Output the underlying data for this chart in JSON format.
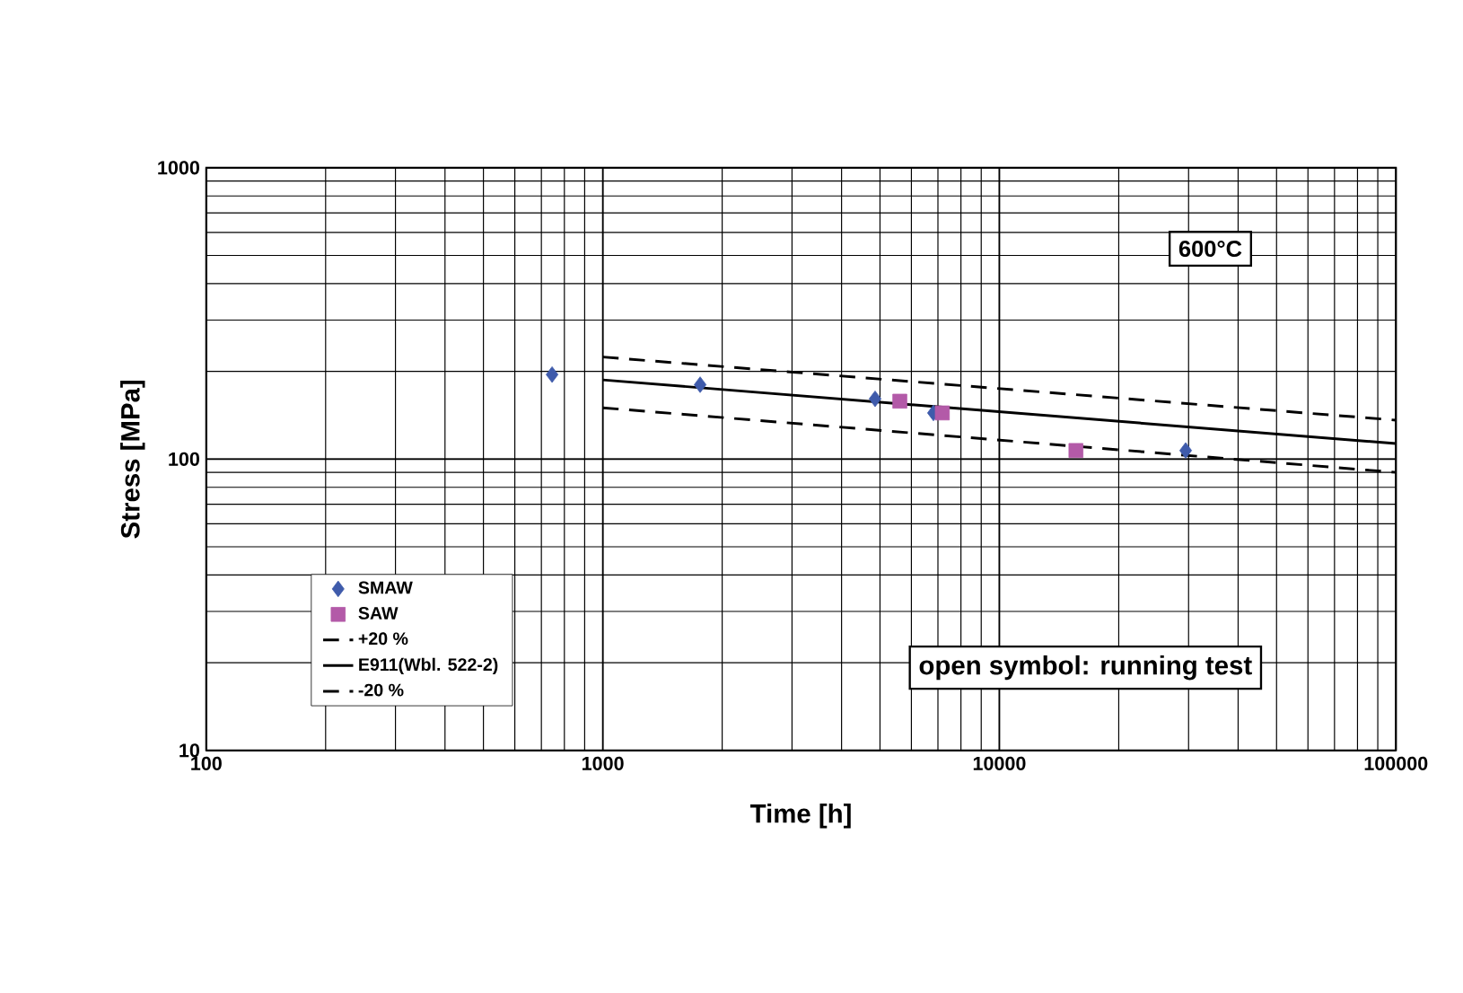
{
  "chart_data": {
    "type": "scatter",
    "xlabel": "Time [h]",
    "ylabel": "Stress [MPa]",
    "log": "xy",
    "grid": true,
    "legend": "bottom left",
    "xlim": [
      100,
      100000
    ],
    "xticks": [
      100,
      1000,
      10000,
      100000
    ],
    "ylim": [
      10,
      1000
    ],
    "yticks": [
      10,
      100,
      1000
    ],
    "annotations": [
      "600°C",
      "open symbol: running test"
    ],
    "series": [
      {
        "name": "SMAW",
        "type": "scatter",
        "marker": "diamond",
        "color": "#3f5bab",
        "x": [
          745,
          1760,
          4860,
          6820,
          29500
        ],
        "values": [
          195,
          180,
          161,
          144,
          107
        ]
      },
      {
        "name": "SAW",
        "type": "scatter",
        "marker": "square",
        "color": "#b35aa8",
        "x": [
          5610,
          7180,
          15600
        ],
        "values": [
          158,
          144,
          107
        ]
      },
      {
        "name": "+20 %",
        "type": "line",
        "marker": "none",
        "line_style": "dashed",
        "color": "#000000",
        "x": [
          1000,
          100000
        ],
        "values": [
          224,
          136
        ]
      },
      {
        "name": "E911(Wbl. 522-2)",
        "type": "line",
        "marker": "none",
        "line_style": "solid",
        "color": "#000000",
        "x": [
          1000,
          100000
        ],
        "values": [
          187,
          113
        ]
      },
      {
        "name": "-20 %",
        "type": "line",
        "marker": "none",
        "line_style": "dashed",
        "color": "#000000",
        "x": [
          1000,
          100000
        ],
        "values": [
          150,
          90
        ]
      }
    ]
  }
}
